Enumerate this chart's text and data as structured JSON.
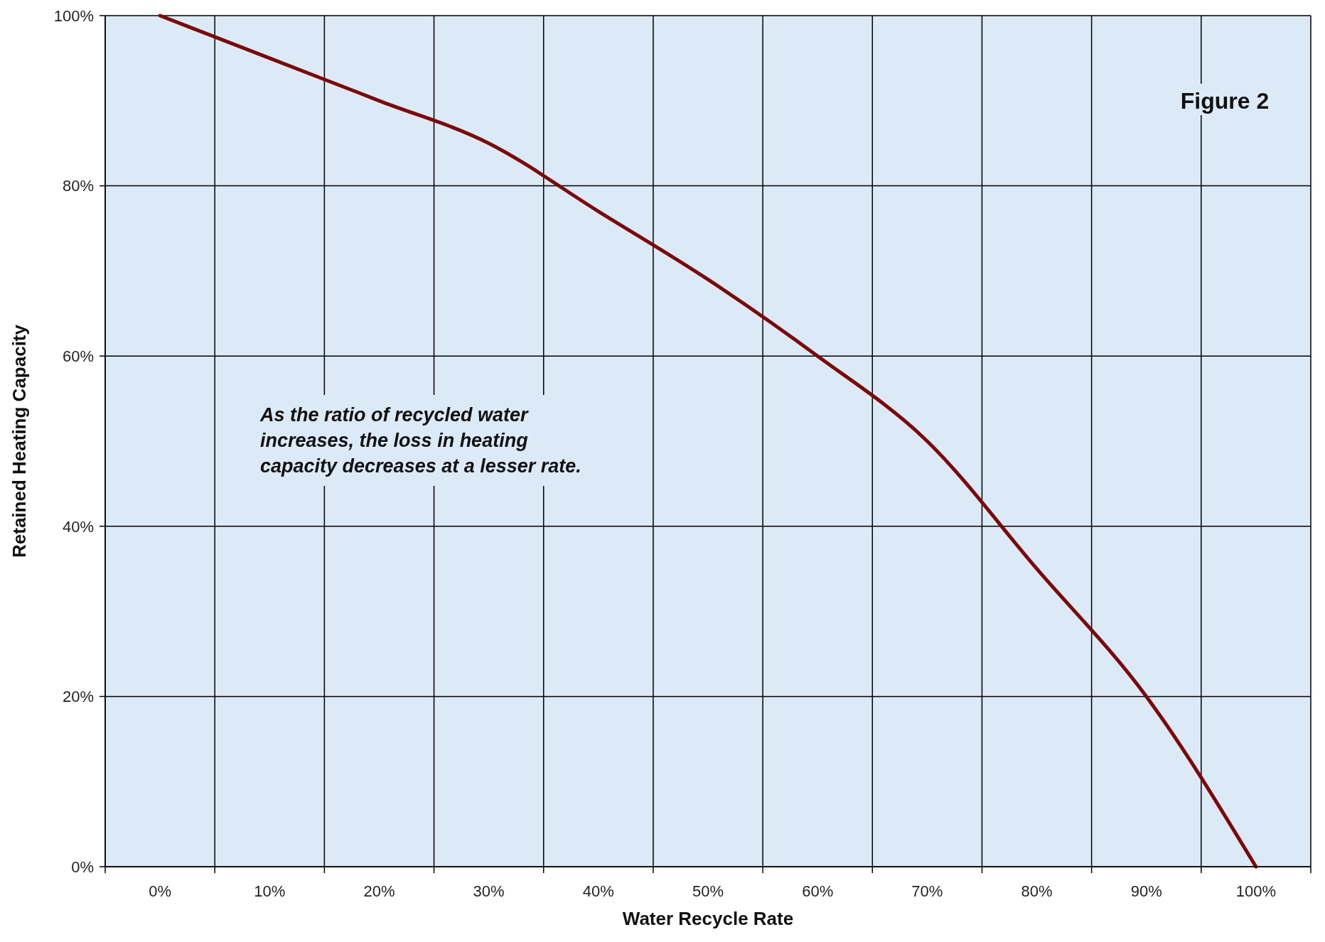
{
  "chart_data": {
    "type": "line",
    "xlabel": "Water Recycle Rate",
    "ylabel": "Retained Heating Capacity",
    "categories": [
      "0%",
      "10%",
      "20%",
      "30%",
      "40%",
      "50%",
      "60%",
      "70%",
      "80%",
      "90%",
      "100%"
    ],
    "series": [
      {
        "color": "#7a0a0a",
        "values": [
          100,
          95,
          90,
          85,
          77,
          69,
          60,
          50,
          35,
          20,
          0
        ]
      }
    ],
    "ylim": [
      0,
      100
    ],
    "yticks": [
      {
        "value": 0,
        "label": "0%"
      },
      {
        "value": 20,
        "label": "20%"
      },
      {
        "value": 40,
        "label": "40%"
      },
      {
        "value": 60,
        "label": "60%"
      },
      {
        "value": 80,
        "label": "80%"
      },
      {
        "value": 100,
        "label": "100%"
      }
    ],
    "grid": true,
    "marker": "none",
    "line_style": "solid",
    "annotations": [
      "Figure 2",
      "As the ratio of recycled water increases, the loss in heating capacity decreases at a lesser rate."
    ]
  }
}
